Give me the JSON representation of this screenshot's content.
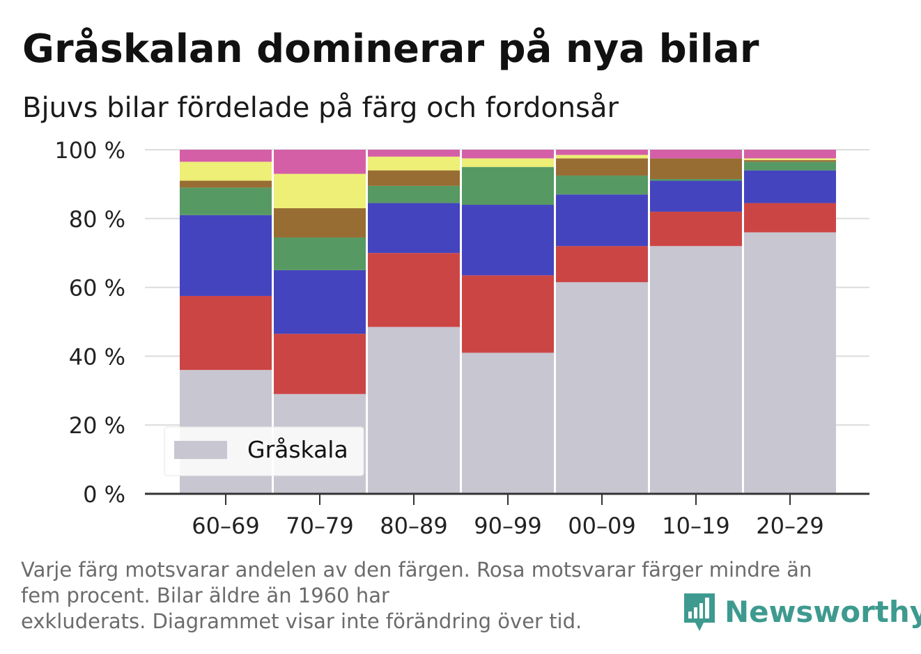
{
  "title": "Gråskalan dominerar på nya bilar",
  "subtitle": "Bjuvs bilar fördelade på färg och fordonsår",
  "footnote": {
    "line1": "Varje färg motsvarar andelen av den färgen. Rosa motsvarar färger mindre än",
    "line2": "fem procent. Bilar äldre än 1960 har",
    "line3": "exkluderats. Diagrammet visar inte förändring över tid."
  },
  "brand": {
    "name": "Newsworthy",
    "icon": "newsworthy-logo-icon",
    "color": "#3e9a8f"
  },
  "chart_data": {
    "type": "bar",
    "stacked": true,
    "categories": [
      "60–69",
      "70–79",
      "80–89",
      "90–99",
      "00–09",
      "10–19",
      "20–29"
    ],
    "ylim": [
      0,
      100
    ],
    "yticks": [
      0,
      20,
      40,
      60,
      80,
      100
    ],
    "ytick_labels": [
      "0 %",
      "20 %",
      "40 %",
      "60 %",
      "80 %",
      "100 %"
    ],
    "grid": true,
    "legend": {
      "position": "bottom-left",
      "entries": [
        "Gråskala"
      ]
    },
    "series": [
      {
        "name": "Gråskala",
        "color": "#c8c6d1",
        "values": [
          36,
          29,
          48.5,
          41,
          61.5,
          72,
          76
        ]
      },
      {
        "color": "#cc4545",
        "values": [
          21.5,
          17.5,
          21.5,
          22.5,
          10.5,
          10,
          8.5
        ]
      },
      {
        "color": "#4444bf",
        "values": [
          23.5,
          18.5,
          14.5,
          20.5,
          15,
          9,
          9.5
        ]
      },
      {
        "color": "#579963",
        "values": [
          8,
          9.5,
          5,
          11,
          5.5,
          0.5,
          2.5
        ]
      },
      {
        "color": "#986d34",
        "values": [
          2,
          8.5,
          4.5,
          0,
          5,
          6,
          0.5
        ]
      },
      {
        "color": "#edef76",
        "values": [
          5.5,
          10,
          4,
          2.5,
          1,
          0,
          0.5
        ]
      },
      {
        "color": "#d55fa7",
        "values": [
          3.5,
          7,
          2,
          2.5,
          1.5,
          2.5,
          2.5
        ]
      }
    ]
  }
}
